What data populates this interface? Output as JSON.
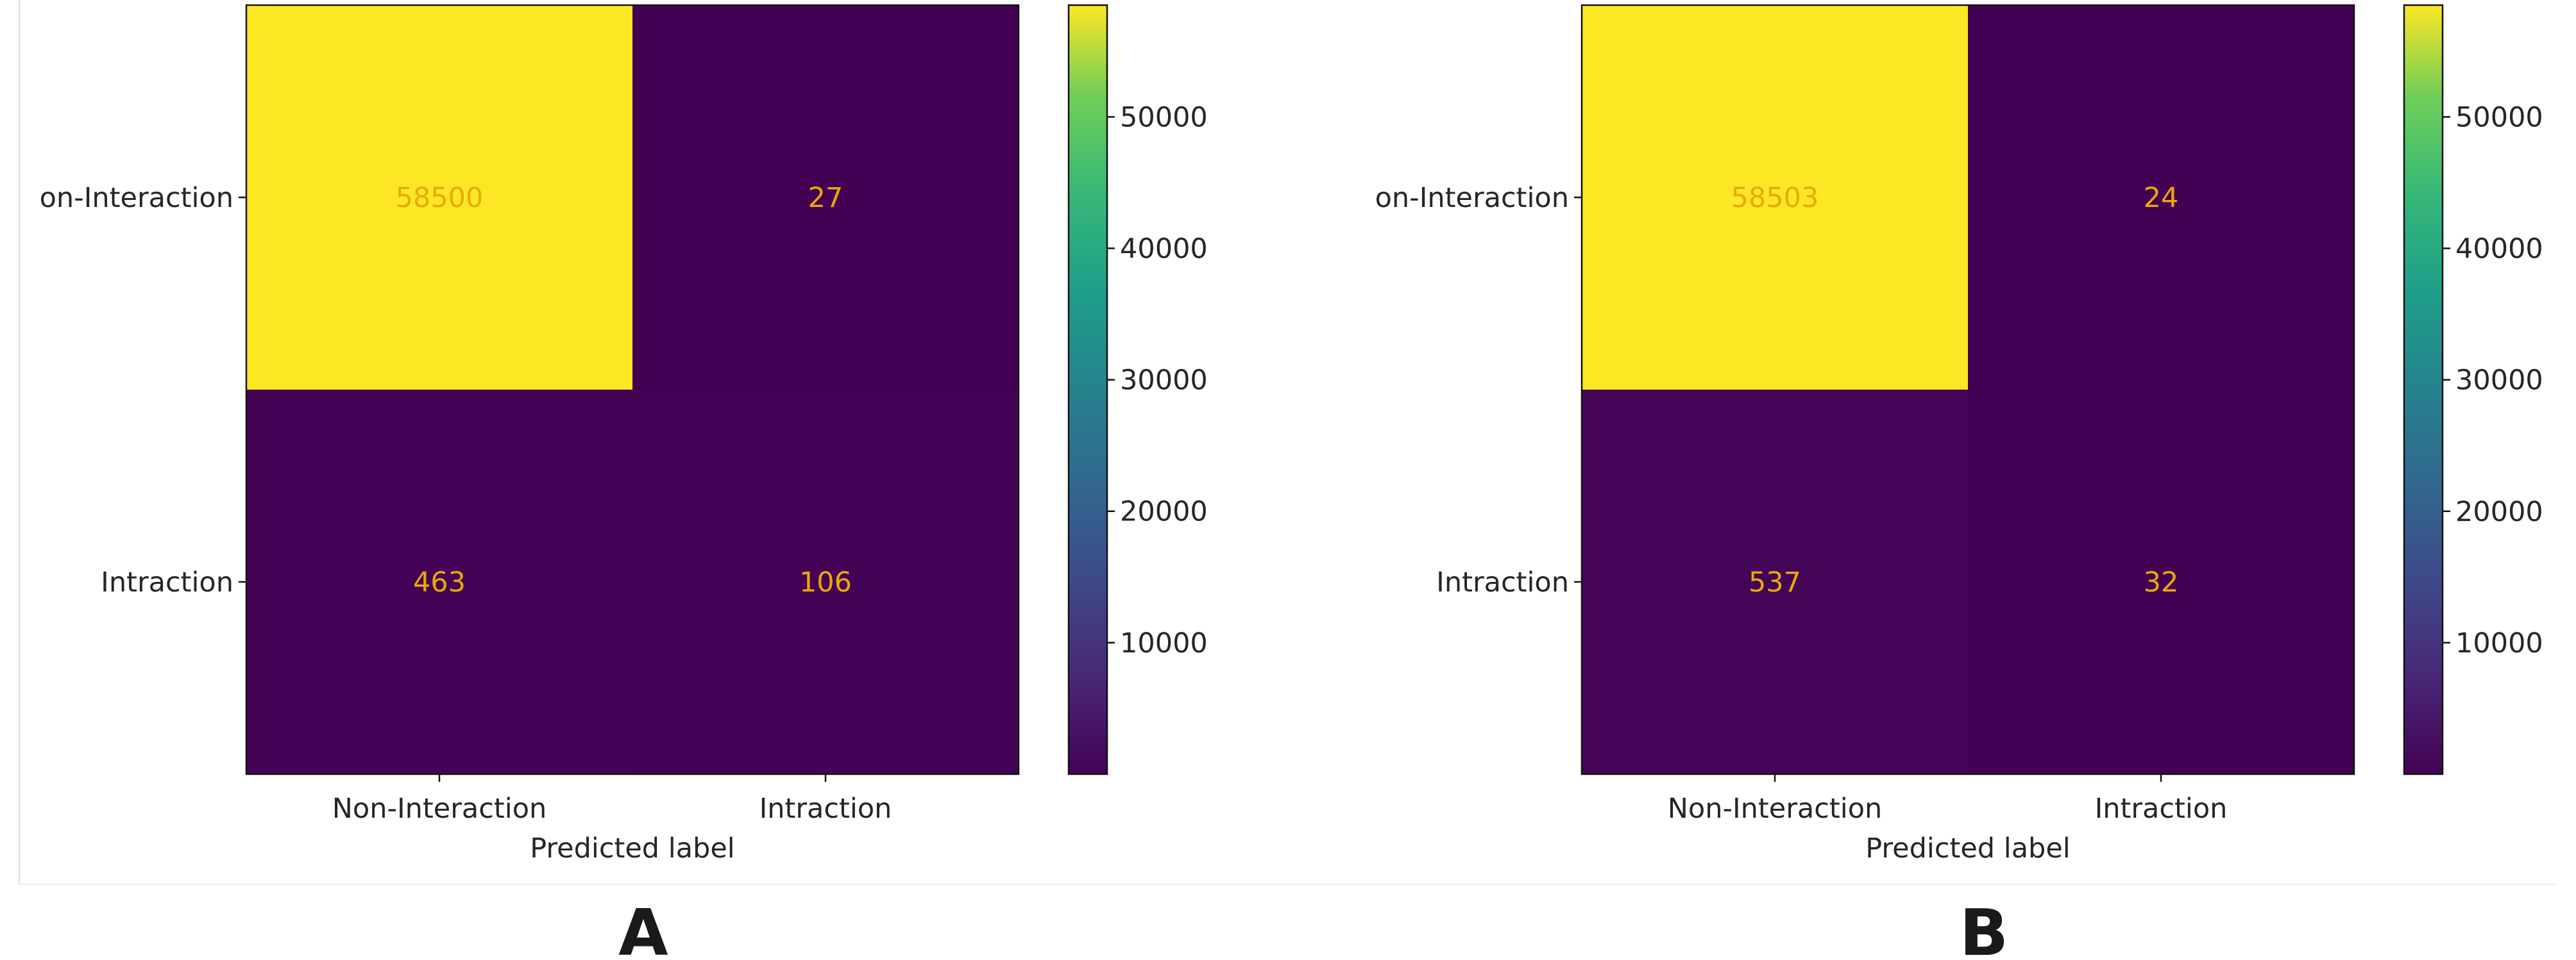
{
  "chart_data": [
    {
      "type": "heatmap",
      "panel_label": "A",
      "xlabel": "Predicted label",
      "ylabel": "",
      "x_categories": [
        "Non-Interaction",
        "Intraction"
      ],
      "y_categories": [
        "on-Interaction",
        "Intraction"
      ],
      "matrix": [
        [
          58500,
          27
        ],
        [
          463,
          106
        ]
      ],
      "colorbar": {
        "min": 0,
        "max": 58500,
        "ticks": [
          10000,
          20000,
          30000,
          40000,
          50000
        ],
        "colormap": "viridis"
      }
    },
    {
      "type": "heatmap",
      "panel_label": "B",
      "xlabel": "Predicted label",
      "ylabel": "",
      "x_categories": [
        "Non-Interaction",
        "Intraction"
      ],
      "y_categories": [
        "on-Interaction",
        "Intraction"
      ],
      "matrix": [
        [
          58503,
          24
        ],
        [
          537,
          32
        ]
      ],
      "colorbar": {
        "min": 0,
        "max": 58503,
        "ticks": [
          10000,
          20000,
          30000,
          40000,
          50000
        ],
        "colormap": "viridis"
      }
    }
  ],
  "colors": {
    "low": "#440154",
    "high": "#fde725",
    "cell_text": "#e8a90a"
  }
}
